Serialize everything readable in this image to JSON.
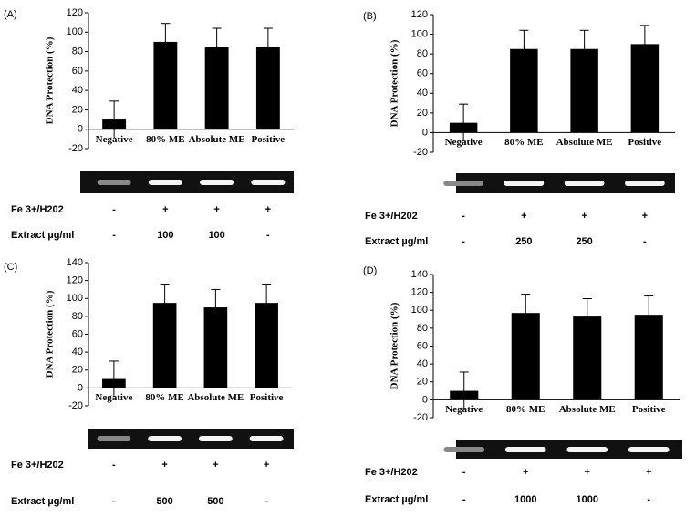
{
  "chart_data": [
    {
      "type": "bar",
      "panel": "(A)",
      "ylabel": "DNA Protection (%)",
      "categories": [
        "Negative",
        "80% ME",
        "Absolute ME",
        "Positive"
      ],
      "values": [
        10,
        90,
        85,
        85
      ],
      "errors": [
        19,
        19,
        19,
        19
      ],
      "color": "#000000",
      "ylim": [
        -20,
        120
      ],
      "yticks": [
        -20,
        0,
        20,
        40,
        60,
        80,
        100,
        120
      ],
      "rows": [
        {
          "label": "Fe 3+/H202",
          "cells": [
            "-",
            "+",
            "+",
            "+"
          ]
        },
        {
          "label": "Extract µg/ml",
          "cells": [
            "-",
            "100",
            "100",
            "-"
          ]
        }
      ]
    },
    {
      "type": "bar",
      "panel": "(B)",
      "ylabel": "DNA Protection (%)",
      "categories": [
        "Negative",
        "80% ME",
        "Absolute ME",
        "Positive"
      ],
      "values": [
        10,
        85,
        85,
        90
      ],
      "errors": [
        19,
        19,
        19,
        19
      ],
      "color": "#000000",
      "ylim": [
        -20,
        120
      ],
      "yticks": [
        -20,
        0,
        20,
        40,
        60,
        80,
        100,
        120
      ],
      "rows": [
        {
          "label": "Fe 3+/H202",
          "cells": [
            "-",
            "+",
            "+",
            "+"
          ]
        },
        {
          "label": "Extract µg/ml",
          "cells": [
            "-",
            "250",
            "250",
            "-"
          ]
        }
      ]
    },
    {
      "type": "bar",
      "panel": "(C)",
      "ylabel": "DNA Protection (%)",
      "categories": [
        "Negative",
        "80% ME",
        "Absolute ME",
        "Positive"
      ],
      "values": [
        10,
        95,
        90,
        95
      ],
      "errors": [
        20,
        21,
        20,
        21
      ],
      "color": "#000000",
      "ylim": [
        -20,
        140
      ],
      "yticks": [
        -20,
        0,
        20,
        40,
        60,
        80,
        100,
        120,
        140
      ],
      "rows": [
        {
          "label": "Fe 3+/H202",
          "cells": [
            "-",
            "+",
            "+",
            "+"
          ]
        },
        {
          "label": "Extract µg/ml",
          "cells": [
            "-",
            "500",
            "500",
            "-"
          ]
        }
      ]
    },
    {
      "type": "bar",
      "panel": "(D)",
      "ylabel": "DNA Protection (%)",
      "categories": [
        "Negative",
        "80% ME",
        "Absolute ME",
        "Positive"
      ],
      "values": [
        10,
        97,
        93,
        95
      ],
      "errors": [
        21,
        21,
        20,
        21
      ],
      "color": "#000000",
      "ylim": [
        -20,
        140
      ],
      "yticks": [
        -20,
        0,
        20,
        40,
        60,
        80,
        100,
        120,
        140
      ],
      "rows": [
        {
          "label": "Fe 3+/H202",
          "cells": [
            "-",
            "+",
            "+",
            "+"
          ]
        },
        {
          "label": "Extract µg/ml",
          "cells": [
            "-",
            "1000",
            "1000",
            "-"
          ]
        }
      ]
    }
  ]
}
